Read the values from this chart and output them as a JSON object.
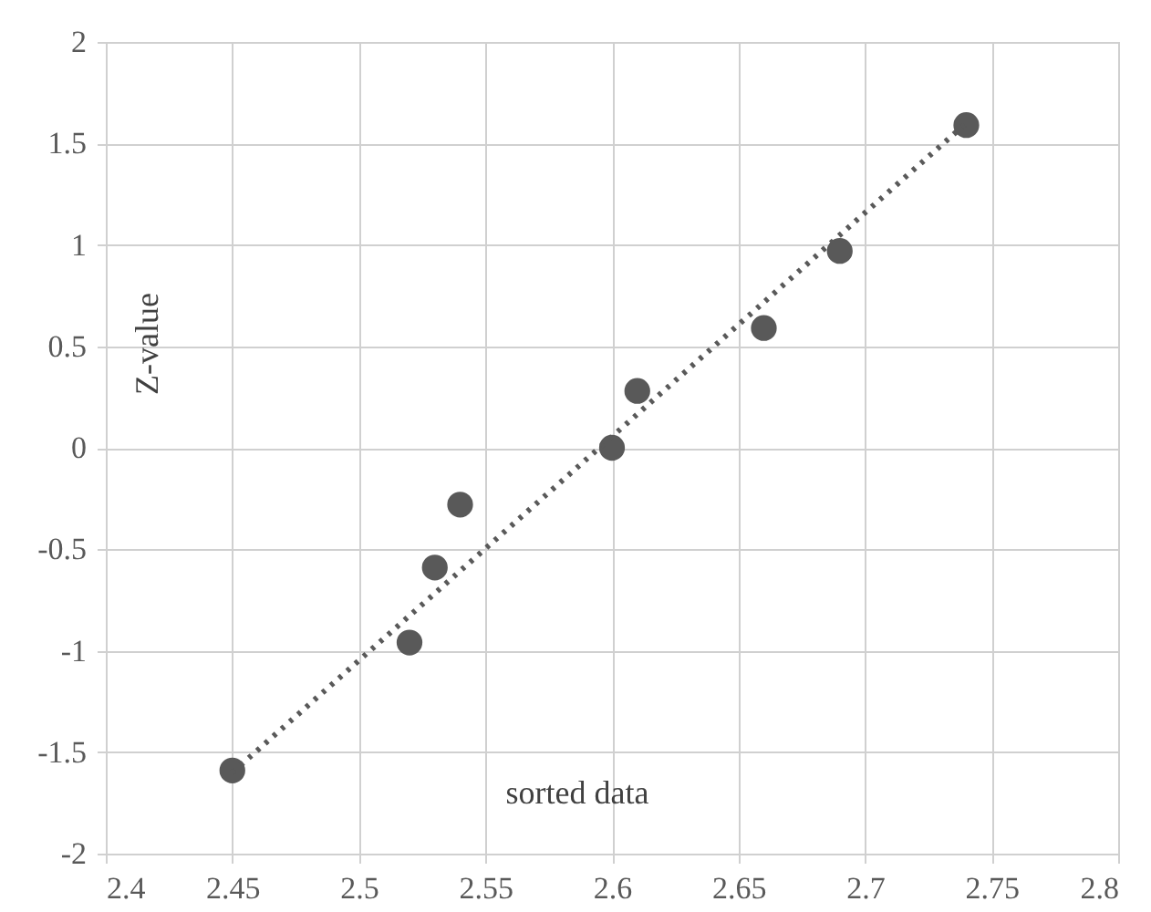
{
  "chart_data": {
    "type": "scatter",
    "xlabel": "sorted data",
    "ylabel": "Z-value",
    "xlim": [
      2.4,
      2.8
    ],
    "xticks": [
      2.4,
      2.45,
      2.5,
      2.55,
      2.6,
      2.65,
      2.7,
      2.75,
      2.8
    ],
    "ylim": [
      -2,
      2
    ],
    "yticks": [
      -2,
      -1.5,
      -1,
      -0.5,
      0,
      0.5,
      1,
      1.5,
      2
    ],
    "grid": true,
    "series": [
      {
        "color": "#595959",
        "marker": "circle",
        "x": [
          2.45,
          2.52,
          2.53,
          2.54,
          2.6,
          2.61,
          2.66,
          2.69,
          2.74
        ],
        "values": [
          -1.59,
          -0.96,
          -0.59,
          -0.28,
          0,
          0.28,
          0.59,
          0.97,
          1.59
        ]
      },
      {
        "type": "line",
        "color": "#595959",
        "line_style": "dotted",
        "x": [
          2.45,
          2.74
        ],
        "values": [
          -1.6,
          1.6
        ]
      }
    ]
  }
}
